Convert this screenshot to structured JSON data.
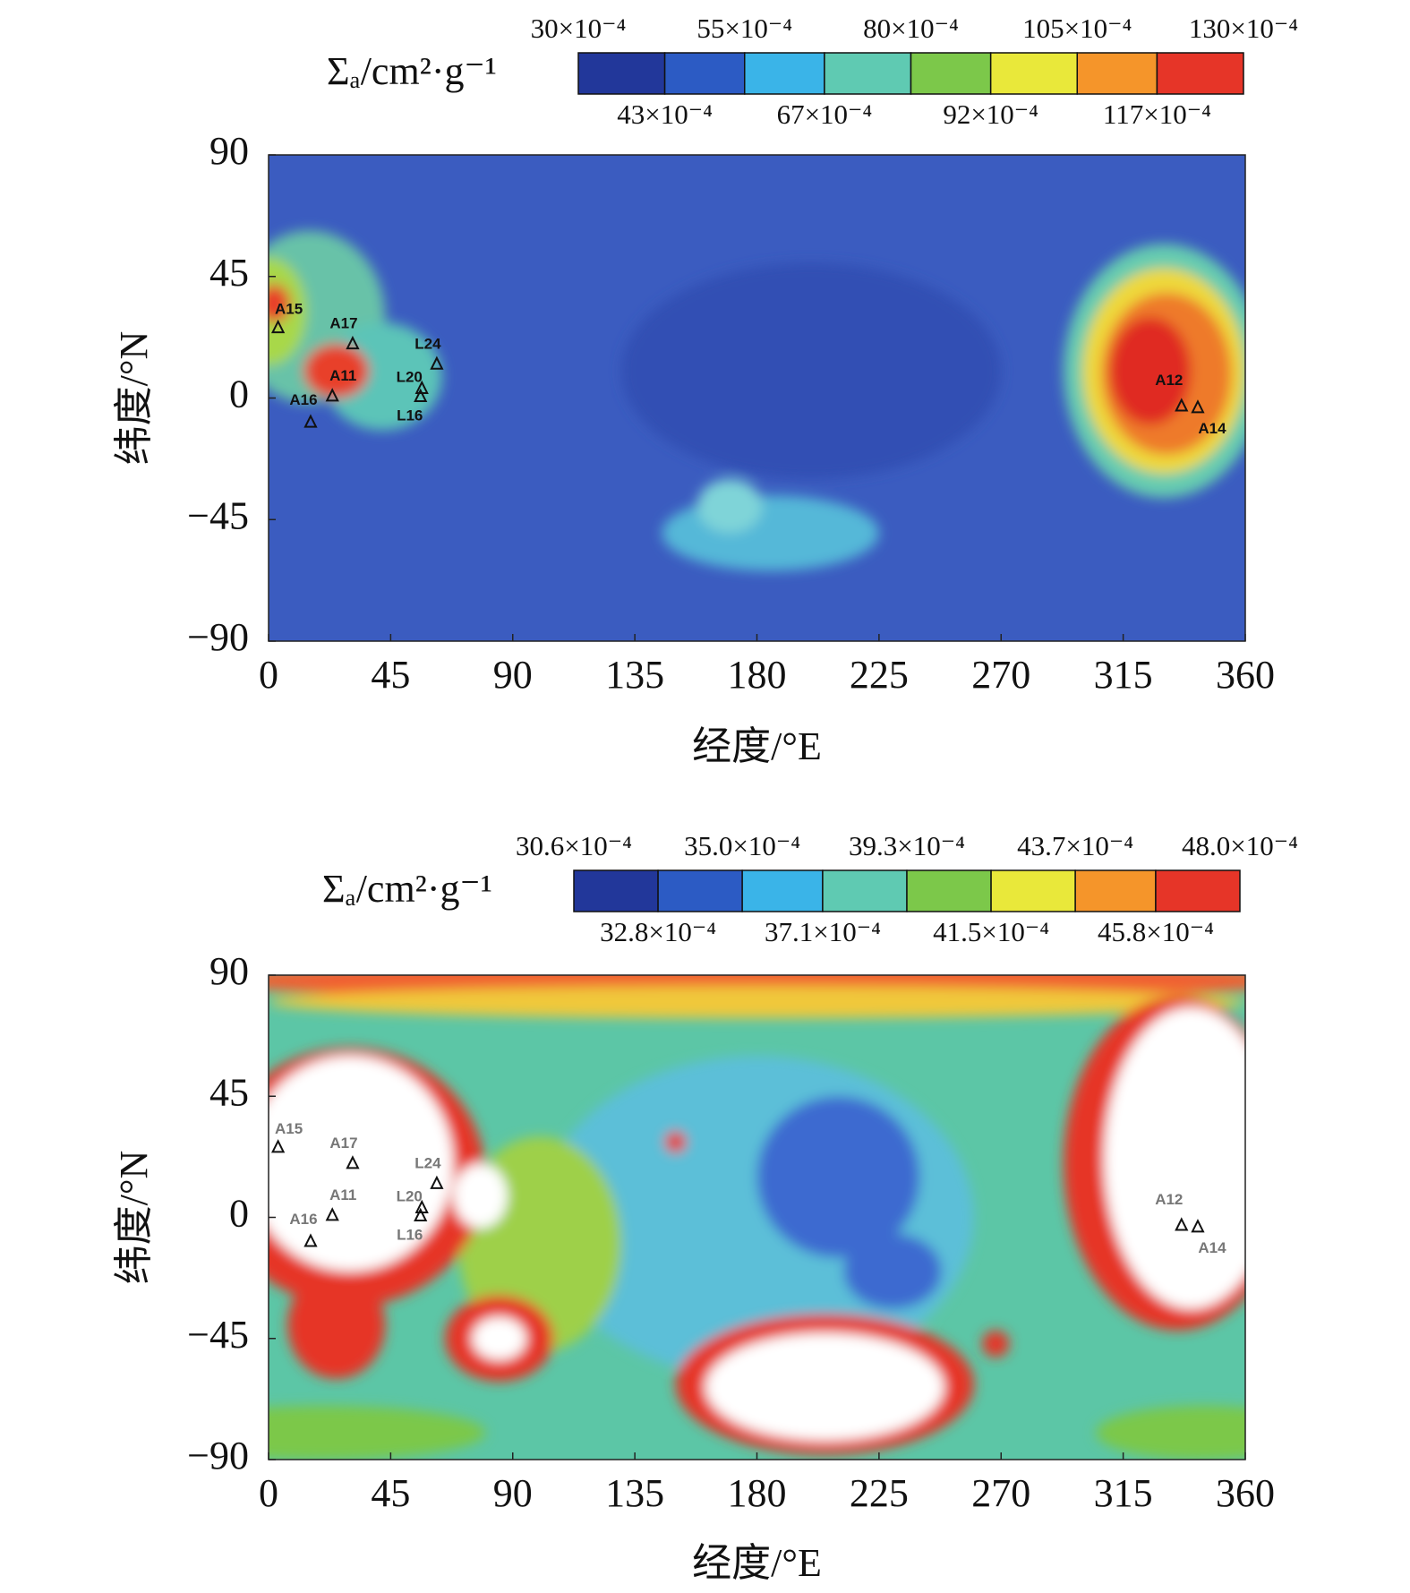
{
  "chart_data": [
    {
      "type": "heatmap",
      "colorbar_label": "Σₐ/cm²·g⁻¹",
      "colorbar_lim": [
        0.003,
        0.013
      ],
      "colorbar_ticks": [
        {
          "value": 0.003,
          "label": "30×10⁻⁴"
        },
        {
          "value": 0.0043,
          "label": "43×10⁻⁴"
        },
        {
          "value": 0.0055,
          "label": "55×10⁻⁴"
        },
        {
          "value": 0.0067,
          "label": "67×10⁻⁴"
        },
        {
          "value": 0.008,
          "label": "80×10⁻⁴"
        },
        {
          "value": 0.0092,
          "label": "92×10⁻⁴"
        },
        {
          "value": 0.0105,
          "label": "105×10⁻⁴"
        },
        {
          "value": 0.0117,
          "label": "117×10⁻⁴"
        },
        {
          "value": 0.013,
          "label": "130×10⁻⁴"
        }
      ],
      "colorbar_colors": [
        "#22379a",
        "#2c5bc4",
        "#3ab4e8",
        "#5fcab2",
        "#7cc84a",
        "#e9e83a",
        "#f5952a",
        "#e63528"
      ],
      "x_label": "经度/°E",
      "y_label": "纬度/°N",
      "xlim": [
        0,
        360
      ],
      "xticks": [
        0,
        45,
        90,
        135,
        180,
        225,
        270,
        315,
        360
      ],
      "ylim": [
        -90,
        90
      ],
      "yticks": [
        {
          "value": -90,
          "label": "−90"
        },
        {
          "value": -45,
          "label": "−45"
        },
        0,
        45,
        90
      ],
      "site_color": "#111111",
      "sites": {
        "labels": [
          "A15",
          "A17",
          "A11",
          "A16",
          "L24",
          "L20",
          "L16",
          "A12",
          "A14"
        ],
        "lon": [
          3.5,
          31,
          23.5,
          15.5,
          62,
          56.5,
          56,
          336.5,
          342.5
        ],
        "lat": [
          26,
          20,
          0.7,
          -9,
          12.5,
          3.5,
          0.5,
          -3,
          -3.6
        ]
      }
    },
    {
      "type": "heatmap",
      "colorbar_label": "Σₐ/cm²·g⁻¹",
      "colorbar_lim": [
        0.00306,
        0.0048
      ],
      "colorbar_ticks": [
        {
          "value": 0.00306,
          "label": "30.6×10⁻⁴"
        },
        {
          "value": 0.00328,
          "label": "32.8×10⁻⁴"
        },
        {
          "value": 0.0035,
          "label": "35.0×10⁻⁴"
        },
        {
          "value": 0.00371,
          "label": "37.1×10⁻⁴"
        },
        {
          "value": 0.00393,
          "label": "39.3×10⁻⁴"
        },
        {
          "value": 0.00415,
          "label": "41.5×10⁻⁴"
        },
        {
          "value": 0.00437,
          "label": "43.7×10⁻⁴"
        },
        {
          "value": 0.00458,
          "label": "45.8×10⁻⁴"
        },
        {
          "value": 0.0048,
          "label": "48.0×10⁻⁴"
        }
      ],
      "colorbar_colors": [
        "#22379a",
        "#2c5bc4",
        "#3ab4e8",
        "#5fcab2",
        "#7cc84a",
        "#e9e83a",
        "#f5952a",
        "#e63528"
      ],
      "x_label": "经度/°E",
      "y_label": "纬度/°N",
      "xlim": [
        0,
        360
      ],
      "xticks": [
        0,
        45,
        90,
        135,
        180,
        225,
        270,
        315,
        360
      ],
      "ylim": [
        -90,
        90
      ],
      "yticks": [
        {
          "value": -90,
          "label": "−90"
        },
        {
          "value": -45,
          "label": "−45"
        },
        0,
        45,
        90
      ],
      "site_color": "#777777",
      "sites": {
        "labels": [
          "A15",
          "A17",
          "A11",
          "A16",
          "L24",
          "L20",
          "L16",
          "A12",
          "A14"
        ],
        "lon": [
          3.5,
          31,
          23.5,
          15.5,
          62,
          56.5,
          56,
          336.5,
          342.5
        ],
        "lat": [
          26,
          20,
          0.7,
          -9,
          12.5,
          3.5,
          0.5,
          -3,
          -3.6
        ]
      }
    }
  ]
}
